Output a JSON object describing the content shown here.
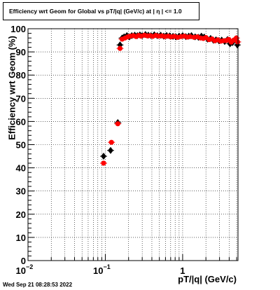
{
  "chart_data": {
    "type": "scatter",
    "title": "Efficiency wrt Geom for Global vs pT/|q| (GeV/c) at |  η | <= 1.0",
    "xlabel": "pT/|q| (GeV/c)",
    "ylabel": "Efficiency wrt Geom (%)",
    "x_scale": "log",
    "xlim": [
      0.01,
      5.2
    ],
    "ylim": [
      0,
      100
    ],
    "x_ticks": [
      {
        "value": 0.01,
        "base": "10",
        "exp": "−2"
      },
      {
        "value": 0.1,
        "base": "10",
        "exp": "−1"
      },
      {
        "value": 1,
        "base": "1",
        "exp": ""
      }
    ],
    "y_ticks": [
      "0",
      "10",
      "20",
      "30",
      "40",
      "50",
      "60",
      "70",
      "80",
      "90",
      "100"
    ],
    "grid": true,
    "series": [
      {
        "color": "#000000",
        "marker": "diamond",
        "x": [
          0.095,
          0.117,
          0.145,
          0.155,
          0.165,
          0.175,
          0.19,
          0.205,
          0.22,
          0.24,
          0.26,
          0.28,
          0.3,
          0.33,
          0.36,
          0.39,
          0.43,
          0.47,
          0.52,
          0.57,
          0.62,
          0.68,
          0.75,
          0.82,
          0.9,
          1.0,
          1.1,
          1.2,
          1.3,
          1.45,
          1.6,
          1.75,
          1.9,
          2.1,
          2.3,
          2.5,
          2.7,
          2.95,
          3.2,
          3.5,
          3.8,
          4.1,
          4.4,
          4.8,
          5.1
        ],
        "y": [
          45,
          47.5,
          59.5,
          93,
          96,
          96.5,
          97,
          96.5,
          97,
          97.2,
          97,
          97.3,
          97,
          97.5,
          97.2,
          97,
          97.4,
          97,
          97.2,
          96.8,
          97.1,
          96.9,
          96.7,
          96.5,
          96.8,
          97,
          96.6,
          96.8,
          97,
          96.5,
          96.3,
          96.8,
          96.4,
          95.5,
          95.8,
          95,
          95.2,
          94.8,
          95.1,
          94.5,
          95.3,
          93.5,
          94,
          95.5,
          93
        ]
      },
      {
        "color": "#ff0000",
        "marker": "circle",
        "x": [
          0.095,
          0.12,
          0.145,
          0.155,
          0.165,
          0.18,
          0.195,
          0.21,
          0.23,
          0.25,
          0.27,
          0.29,
          0.32,
          0.35,
          0.38,
          0.41,
          0.45,
          0.49,
          0.54,
          0.59,
          0.65,
          0.71,
          0.78,
          0.86,
          0.95,
          1.05,
          1.15,
          1.25,
          1.4,
          1.55,
          1.7,
          1.85,
          2.0,
          2.2,
          2.4,
          2.6,
          2.85,
          3.1,
          3.35,
          3.65,
          3.95,
          4.25,
          4.6,
          4.95,
          5.15
        ],
        "y": [
          42,
          51,
          59,
          91.5,
          95.5,
          96,
          96.5,
          96.8,
          97,
          96.6,
          97.1,
          96.8,
          97.2,
          96.9,
          97,
          96.7,
          97.1,
          96.8,
          96.9,
          96.6,
          96.8,
          96.5,
          96.7,
          96.3,
          96.6,
          96.8,
          96.4,
          96.6,
          96.3,
          96.5,
          96,
          95.8,
          96.2,
          95.3,
          95.6,
          94.8,
          95.2,
          94.6,
          94.8,
          94.9,
          95.4,
          94.2,
          95.1,
          96,
          94.3
        ]
      }
    ]
  },
  "timestamp": "Wed Sep 21 08:28:53 2022"
}
